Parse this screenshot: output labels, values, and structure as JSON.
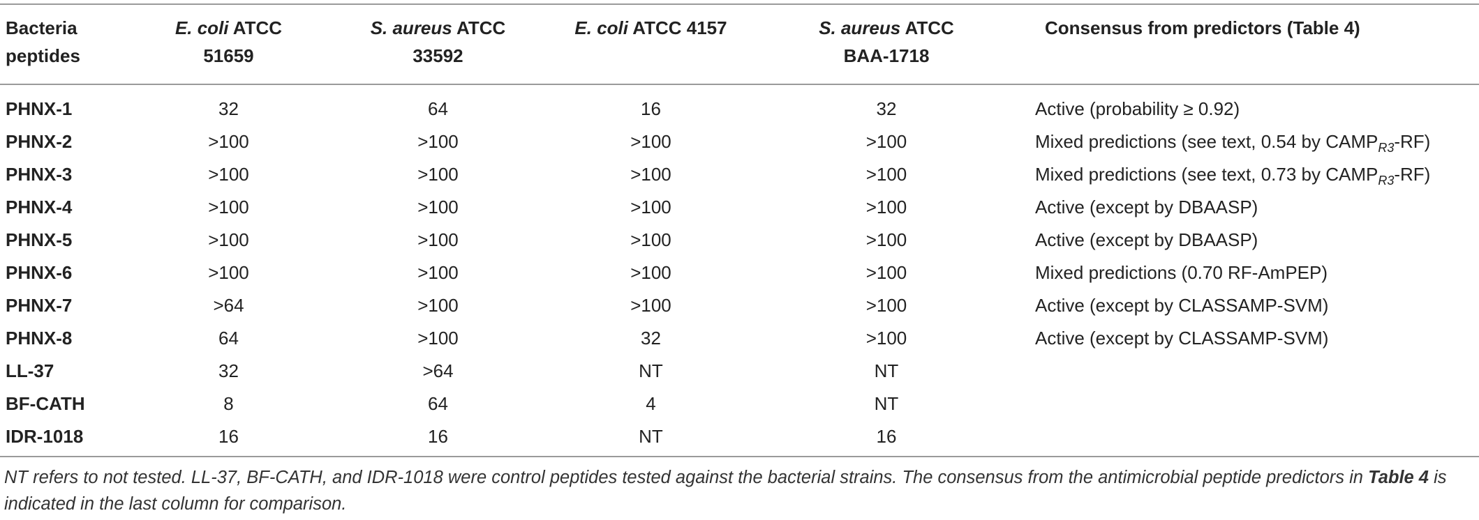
{
  "table": {
    "headers": {
      "peptides": "Bacteria peptides",
      "col1_species": "E. coli",
      "col1_strain_a": " ATCC",
      "col1_strain_b": "51659",
      "col2_species": "S. aureus",
      "col2_strain_a": " ATCC",
      "col2_strain_b": "33592",
      "col3_species": "E. coli",
      "col3_strain_a": " ATCC 4157",
      "col4_species": "S. aureus",
      "col4_strain_a": " ATCC",
      "col4_strain_b": "BAA-1718",
      "consensus": "Consensus from predictors (Table 4)"
    },
    "rows": [
      {
        "name": "PHNX-1",
        "v1": "32",
        "v2": "64",
        "v3": "16",
        "v4": "32",
        "consensus": "Active (probability ≥ 0.92)"
      },
      {
        "name": "PHNX-2",
        "v1": ">100",
        "v2": ">100",
        "v3": ">100",
        "v4": ">100",
        "consensus_pre": "Mixed predictions (see text, 0.54 by CAMP",
        "consensus_sub": "R3",
        "consensus_post": "-RF)"
      },
      {
        "name": "PHNX-3",
        "v1": ">100",
        "v2": ">100",
        "v3": ">100",
        "v4": ">100",
        "consensus_pre": "Mixed predictions (see text, 0.73 by CAMP",
        "consensus_sub": "R3",
        "consensus_post": "-RF)"
      },
      {
        "name": "PHNX-4",
        "v1": ">100",
        "v2": ">100",
        "v3": ">100",
        "v4": ">100",
        "consensus": "Active (except by DBAASP)"
      },
      {
        "name": "PHNX-5",
        "v1": ">100",
        "v2": ">100",
        "v3": ">100",
        "v4": ">100",
        "consensus": "Active (except by DBAASP)"
      },
      {
        "name": "PHNX-6",
        "v1": ">100",
        "v2": ">100",
        "v3": ">100",
        "v4": ">100",
        "consensus": "Mixed predictions (0.70 RF-AmPEP)"
      },
      {
        "name": "PHNX-7",
        "v1": ">64",
        "v2": ">100",
        "v3": ">100",
        "v4": ">100",
        "consensus": "Active (except by CLASSAMP-SVM)"
      },
      {
        "name": "PHNX-8",
        "v1": "64",
        "v2": ">100",
        "v3": "32",
        "v4": ">100",
        "consensus": "Active (except by CLASSAMP-SVM)"
      },
      {
        "name": "LL-37",
        "v1": "32",
        "v2": ">64",
        "v3": "NT",
        "v4": "NT",
        "consensus": ""
      },
      {
        "name": "BF-CATH",
        "v1": "8",
        "v2": "64",
        "v3": "4",
        "v4": "NT",
        "consensus": ""
      },
      {
        "name": "IDR-1018",
        "v1": "16",
        "v2": "16",
        "v3": "NT",
        "v4": "16",
        "consensus": ""
      }
    ]
  },
  "footnote": {
    "part1": "NT refers to not tested. LL-37, BF-CATH, and IDR-1018 were control peptides tested against the bacterial strains. The consensus from the antimicrobial peptide predictors in ",
    "table_ref": "Table 4",
    "part2": " is indicated in the last column for comparison."
  }
}
